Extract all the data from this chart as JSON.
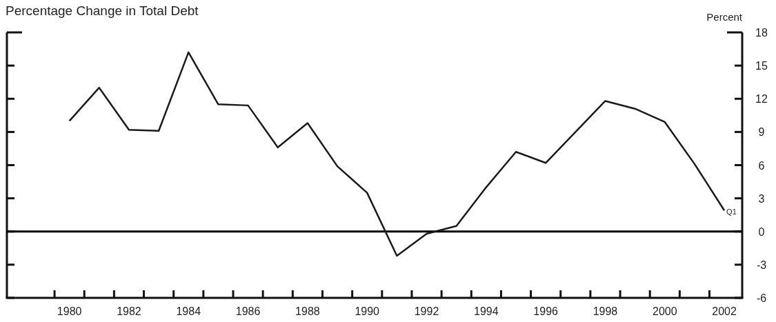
{
  "chart_data": {
    "type": "line",
    "title": "Percentage Change in Total Debt",
    "ylabel": "Percent",
    "x": [
      1980,
      1981,
      1982,
      1983,
      1984,
      1985,
      1986,
      1987,
      1988,
      1989,
      1990,
      1991,
      1992,
      1993,
      1994,
      1995,
      1996,
      1997,
      1998,
      1999,
      2000,
      2001,
      2002
    ],
    "series": [
      {
        "color": "#1a1a1a",
        "values": [
          10.0,
          13.0,
          9.2,
          9.1,
          16.2,
          11.5,
          11.4,
          7.6,
          9.8,
          5.9,
          3.5,
          -2.2,
          -0.2,
          0.5,
          4.0,
          7.2,
          6.2,
          9.0,
          11.8,
          11.1,
          9.9,
          6.1,
          1.9
        ]
      }
    ],
    "xlim": [
      1977.9,
      2002.6
    ],
    "xticks": [
      1980,
      1982,
      1984,
      1986,
      1988,
      1990,
      1992,
      1994,
      1996,
      1998,
      2000,
      2002,
      {
        "value": 1979.5,
        "label": null
      },
      {
        "value": 1980.5,
        "label": null
      },
      {
        "value": 1981.5,
        "label": null
      },
      {
        "value": 1982.5,
        "label": null
      },
      {
        "value": 1983.5,
        "label": null
      },
      {
        "value": 1984.5,
        "label": null
      },
      {
        "value": 1985.5,
        "label": null
      },
      {
        "value": 1986.5,
        "label": null
      },
      {
        "value": 1987.5,
        "label": null
      },
      {
        "value": 1988.5,
        "label": null
      },
      {
        "value": 1989.5,
        "label": null
      },
      {
        "value": 1990.5,
        "label": null
      },
      {
        "value": 1991.5,
        "label": null
      },
      {
        "value": 1992.5,
        "label": null
      },
      {
        "value": 1993.5,
        "label": null
      },
      {
        "value": 1994.5,
        "label": null
      },
      {
        "value": 1995.5,
        "label": null
      },
      {
        "value": 1996.5,
        "label": null
      },
      {
        "value": 1997.5,
        "label": null
      },
      {
        "value": 1998.5,
        "label": null
      },
      {
        "value": 1999.5,
        "label": null
      },
      {
        "value": 2000.5,
        "label": null
      },
      {
        "value": 2001.5,
        "label": null
      }
    ],
    "ylim": [
      -6,
      18
    ],
    "yticks": [
      -6,
      -3,
      0,
      3,
      6,
      9,
      12,
      15,
      18
    ],
    "ref_lines": [
      {
        "axis": "y",
        "value": 0,
        "color": "#000000"
      }
    ],
    "annotations": [
      {
        "text": "Q1",
        "x": 2002,
        "y": 1.9
      }
    ],
    "marker": "none",
    "line_style": "solid"
  }
}
